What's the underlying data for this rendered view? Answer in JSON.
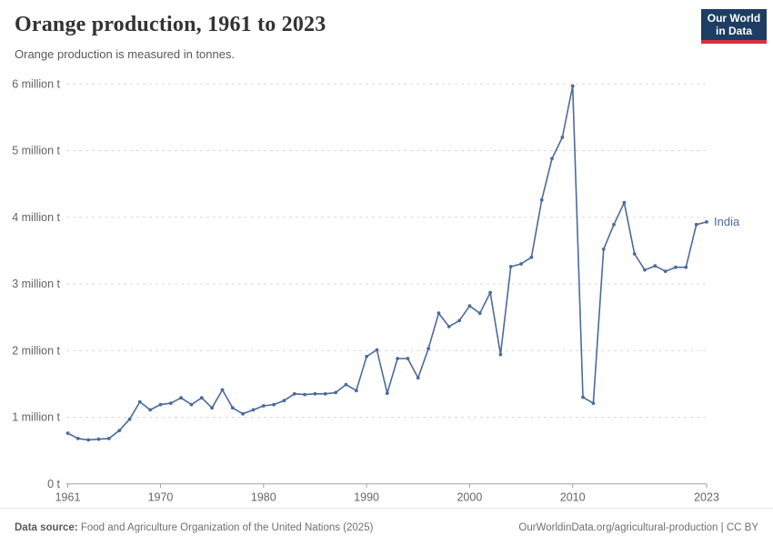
{
  "header": {
    "title": "Orange production, 1961 to 2023",
    "subtitle": "Orange production is measured in tonnes.",
    "logo_line1": "Our World",
    "logo_line2": "in Data"
  },
  "colors": {
    "series_line": "#4C6B9C",
    "gridline": "#dadada",
    "axis": "#a3a3a3",
    "logo_background": "#1d3d63",
    "logo_red_bar": "#dc2e41",
    "title_text": "#333333",
    "axis_text": "#636363",
    "footer_text": "#707070"
  },
  "chart_data": {
    "type": "line",
    "title": "Orange production, 1961 to 2023",
    "subtitle": "Orange production is measured in tonnes.",
    "unit": "tonnes",
    "xlabel": "",
    "ylabel": "",
    "grid": "horizontal-dashed",
    "legend_position": "end-of-line-label",
    "xlim": [
      1961,
      2023
    ],
    "ylim": [
      0,
      6000000
    ],
    "x_ticks": [
      1961,
      1970,
      1980,
      1990,
      2000,
      2010,
      2023
    ],
    "y_ticks": [
      {
        "value": 0,
        "label": "0 t"
      },
      {
        "value": 1000000,
        "label": "1 million t"
      },
      {
        "value": 2000000,
        "label": "2 million t"
      },
      {
        "value": 3000000,
        "label": "3 million t"
      },
      {
        "value": 4000000,
        "label": "4 million t"
      },
      {
        "value": 5000000,
        "label": "5 million t"
      },
      {
        "value": 6000000,
        "label": "6 million t"
      }
    ],
    "series": [
      {
        "name": "India",
        "color": "#4C6B9C",
        "x": [
          1961,
          1962,
          1963,
          1964,
          1965,
          1966,
          1967,
          1968,
          1969,
          1970,
          1971,
          1972,
          1973,
          1974,
          1975,
          1976,
          1977,
          1978,
          1979,
          1980,
          1981,
          1982,
          1983,
          1984,
          1985,
          1986,
          1987,
          1988,
          1989,
          1990,
          1991,
          1992,
          1993,
          1994,
          1995,
          1996,
          1997,
          1998,
          1999,
          2000,
          2001,
          2002,
          2003,
          2004,
          2005,
          2006,
          2007,
          2008,
          2009,
          2010,
          2011,
          2012,
          2013,
          2014,
          2015,
          2016,
          2017,
          2018,
          2019,
          2020,
          2021,
          2022,
          2023
        ],
        "values": [
          760000,
          680000,
          660000,
          670000,
          680000,
          800000,
          970000,
          1230000,
          1110000,
          1190000,
          1210000,
          1290000,
          1190000,
          1290000,
          1140000,
          1410000,
          1140000,
          1050000,
          1110000,
          1170000,
          1190000,
          1250000,
          1350000,
          1340000,
          1350000,
          1350000,
          1370000,
          1490000,
          1400000,
          1910000,
          2010000,
          1360000,
          1880000,
          1880000,
          1590000,
          2030000,
          2560000,
          2360000,
          2450000,
          2670000,
          2560000,
          2870000,
          1940000,
          3260000,
          3300000,
          3400000,
          4260000,
          4880000,
          5200000,
          5970000,
          1300000,
          1210000,
          3520000,
          3890000,
          4220000,
          3450000,
          3210000,
          3270000,
          3190000,
          3250000,
          3250000,
          3890000,
          3930000
        ]
      }
    ]
  },
  "footer": {
    "datasource_label": "Data source:",
    "datasource_text": " Food and Agriculture Organization of the United Nations (2025)",
    "right_link": "OurWorldinData.org/agricultural-production",
    "separator": " | ",
    "license": "CC BY"
  }
}
